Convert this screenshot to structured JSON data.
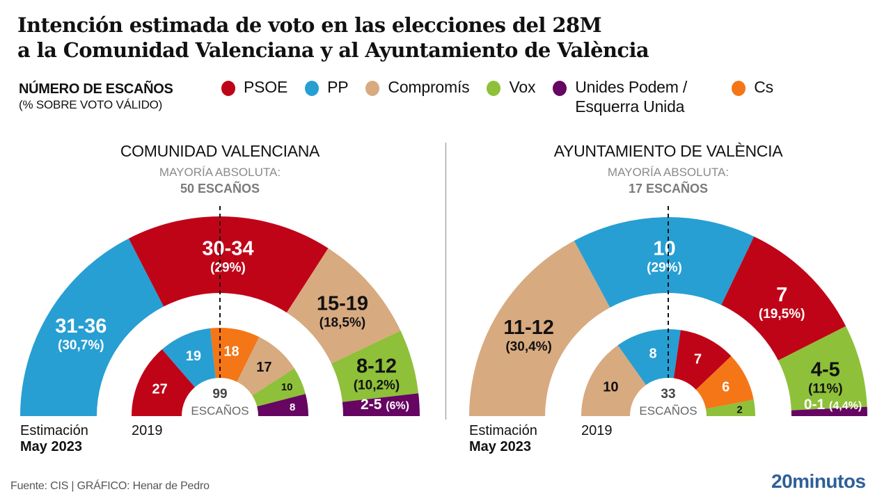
{
  "title_line1": "Intención estimada de voto en las elecciones del 28M",
  "title_line2": "a la Comunidad Valenciana y al Ayuntamiento de València",
  "legend": {
    "heading": "NÚMERO DE ESCAÑOS",
    "subheading": "(% SOBRE VOTO VÁLIDO)",
    "items": [
      {
        "label": "PSOE",
        "color": "#c00418"
      },
      {
        "label": "PP",
        "color": "#279fd3"
      },
      {
        "label": "Compromís",
        "color": "#d8aa80"
      },
      {
        "label": "Vox",
        "color": "#8ec03a"
      },
      {
        "label": "Unides Podem / Esquerra Unida",
        "color": "#660562"
      },
      {
        "label": "Cs",
        "color": "#f47617"
      }
    ]
  },
  "footer": "Fuente: CIS  |  GRÁFICO: Henar de Pedro",
  "logo": "20minutos",
  "chart_data": [
    {
      "type": "parliament-semicircle",
      "title": "COMUNIDAD VALENCIANA",
      "majority_label": "MAYORÍA ABSOLUTA:",
      "majority_value": "50 ESCAÑOS",
      "total_label_number": "99",
      "total_label_text": "ESCAÑOS",
      "outer_caption_1": "Estimación",
      "outer_caption_2": "May 2023",
      "inner_caption": "2019",
      "estimate_2023": [
        {
          "party": "PP",
          "seats": "31-36",
          "seats_min": 31,
          "seats_max": 36,
          "pct": "(30,7%)",
          "color": "#279fd3",
          "text_color": "#ffffff"
        },
        {
          "party": "PSOE",
          "seats": "30-34",
          "seats_min": 30,
          "seats_max": 34,
          "pct": "(29%)",
          "color": "#c00418",
          "text_color": "#ffffff"
        },
        {
          "party": "Compromís",
          "seats": "15-19",
          "seats_min": 15,
          "seats_max": 19,
          "pct": "(18,5%)",
          "color": "#d8aa80",
          "text_color": "#111111"
        },
        {
          "party": "Vox",
          "seats": "8-12",
          "seats_min": 8,
          "seats_max": 12,
          "pct": "(10,2%)",
          "color": "#8ec03a",
          "text_color": "#111111"
        },
        {
          "party": "Unides Podem / Esquerra Unida",
          "seats": "2-5",
          "seats_min": 2,
          "seats_max": 5,
          "pct": "(6%)",
          "color": "#660562",
          "text_color": "#ffffff"
        }
      ],
      "results_2019": [
        {
          "party": "PSOE",
          "seats": 27,
          "color": "#c00418",
          "text_color": "#ffffff"
        },
        {
          "party": "PP",
          "seats": 19,
          "color": "#279fd3",
          "text_color": "#ffffff"
        },
        {
          "party": "Cs",
          "seats": 18,
          "color": "#f47617",
          "text_color": "#ffffff"
        },
        {
          "party": "Compromís",
          "seats": 17,
          "color": "#d8aa80",
          "text_color": "#111111"
        },
        {
          "party": "Vox",
          "seats": 10,
          "color": "#8ec03a",
          "text_color": "#111111"
        },
        {
          "party": "Unides Podem / Esquerra Unida",
          "seats": 8,
          "color": "#660562",
          "text_color": "#ffffff"
        }
      ]
    },
    {
      "type": "parliament-semicircle",
      "title": "AYUNTAMIENTO DE VALÈNCIA",
      "majority_label": "MAYORÍA ABSOLUTA:",
      "majority_value": "17 ESCAÑOS",
      "total_label_number": "33",
      "total_label_text": "ESCAÑOS",
      "outer_caption_1": "Estimación",
      "outer_caption_2": "May 2023",
      "inner_caption": "2019",
      "estimate_2023": [
        {
          "party": "Compromís",
          "seats": "11-12",
          "seats_min": 11,
          "seats_max": 12,
          "pct": "(30,4%)",
          "color": "#d8aa80",
          "text_color": "#111111"
        },
        {
          "party": "PP",
          "seats": "10",
          "seats_min": 10,
          "seats_max": 10,
          "pct": "(29%)",
          "color": "#279fd3",
          "text_color": "#ffffff"
        },
        {
          "party": "PSOE",
          "seats": "7",
          "seats_min": 7,
          "seats_max": 7,
          "pct": "(19,5%)",
          "color": "#c00418",
          "text_color": "#ffffff"
        },
        {
          "party": "Vox",
          "seats": "4-5",
          "seats_min": 4,
          "seats_max": 5,
          "pct": "(11%)",
          "color": "#8ec03a",
          "text_color": "#111111"
        },
        {
          "party": "Unides Podem / Esquerra Unida",
          "seats": "0-1",
          "seats_min": 0,
          "seats_max": 1,
          "pct": "(4,4%)",
          "color": "#660562",
          "text_color": "#ffffff"
        }
      ],
      "results_2019": [
        {
          "party": "Compromís",
          "seats": 10,
          "color": "#d8aa80",
          "text_color": "#111111"
        },
        {
          "party": "PP",
          "seats": 8,
          "color": "#279fd3",
          "text_color": "#ffffff"
        },
        {
          "party": "PSOE",
          "seats": 7,
          "color": "#c00418",
          "text_color": "#ffffff"
        },
        {
          "party": "Cs",
          "seats": 6,
          "color": "#f47617",
          "text_color": "#ffffff"
        },
        {
          "party": "Vox",
          "seats": 2,
          "color": "#8ec03a",
          "text_color": "#111111"
        }
      ]
    }
  ]
}
